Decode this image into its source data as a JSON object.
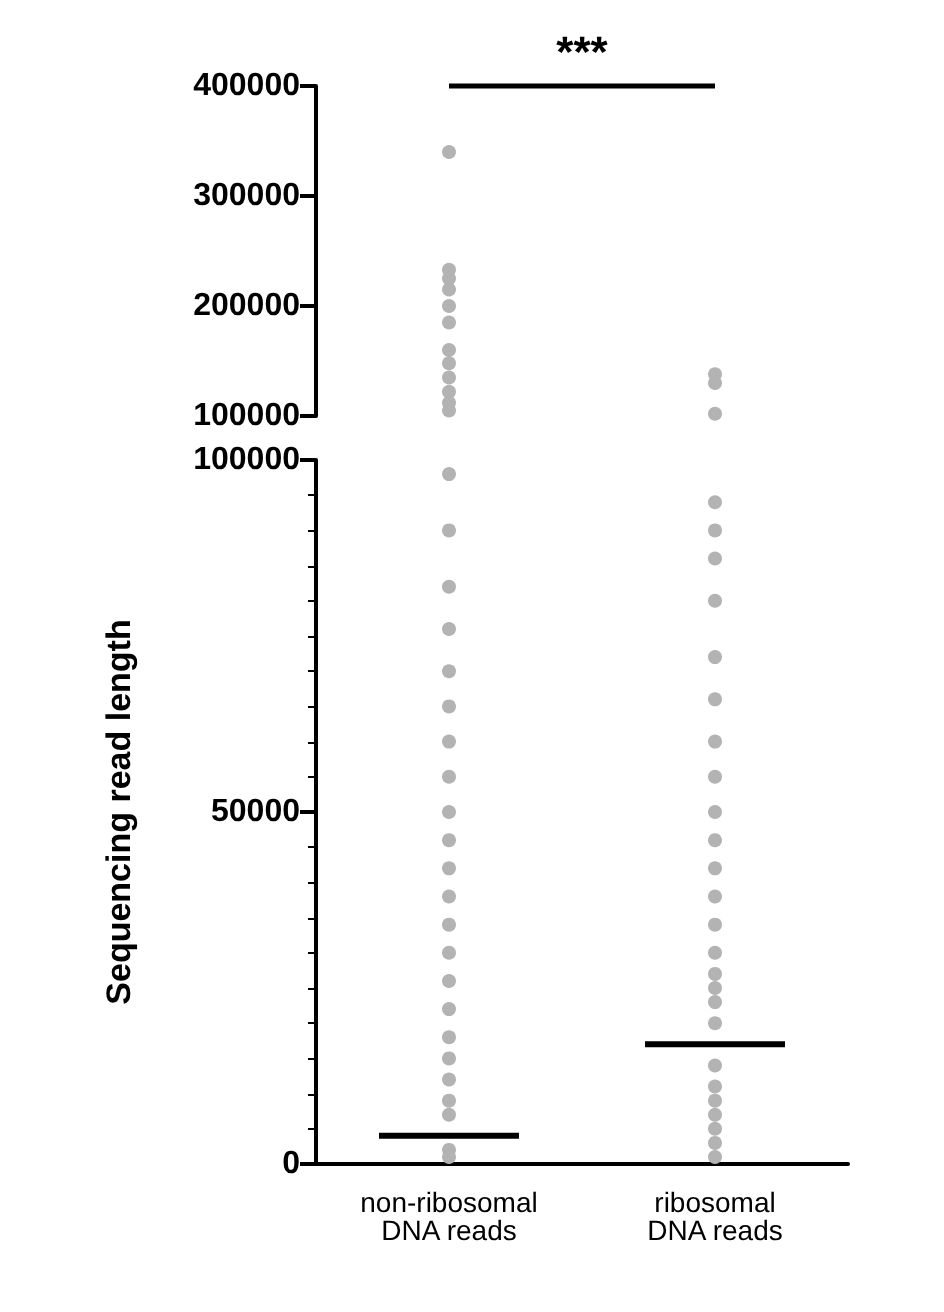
{
  "chart_data": [
    {
      "type": "scatter",
      "categories": [
        "non-ribosomal\nDNA reads",
        "ribosomal\nDNA reads"
      ],
      "ylim": [
        100000,
        400000
      ],
      "yticks": [
        100000,
        200000,
        300000,
        400000
      ],
      "tick_labels": "y",
      "annotations": [
        "***"
      ],
      "marker": "circle",
      "series": [
        {
          "color": "#b3b3b3",
          "x": [
            "non-ribosomal\nDNA reads",
            "non-ribosomal\nDNA reads",
            "non-ribosomal\nDNA reads",
            "non-ribosomal\nDNA reads",
            "non-ribosomal\nDNA reads",
            "non-ribosomal\nDNA reads",
            "non-ribosomal\nDNA reads",
            "non-ribosomal\nDNA reads",
            "non-ribosomal\nDNA reads",
            "non-ribosomal\nDNA reads",
            "non-ribosomal\nDNA reads",
            "non-ribosomal\nDNA reads",
            "ribosomal\nDNA reads",
            "ribosomal\nDNA reads",
            "ribosomal\nDNA reads"
          ],
          "values": [
            340000,
            233000,
            225000,
            215000,
            200000,
            185000,
            160000,
            148000,
            135000,
            122000,
            112000,
            105000,
            138000,
            130000,
            102000
          ]
        }
      ]
    },
    {
      "type": "scatter",
      "categories": [
        "non-ribosomal\nDNA reads",
        "ribosomal\nDNA reads"
      ],
      "ylim": [
        0,
        100000
      ],
      "yticks": [
        0,
        50000,
        100000
      ],
      "ylabel": "Sequencing read length",
      "marker": "circle",
      "series": [
        {
          "color": "#b3b3b3",
          "x": [
            "non-ribosomal\nDNA reads",
            "non-ribosomal\nDNA reads",
            "non-ribosomal\nDNA reads",
            "non-ribosomal\nDNA reads",
            "non-ribosomal\nDNA reads",
            "non-ribosomal\nDNA reads",
            "non-ribosomal\nDNA reads",
            "non-ribosomal\nDNA reads",
            "non-ribosomal\nDNA reads",
            "non-ribosomal\nDNA reads",
            "non-ribosomal\nDNA reads",
            "non-ribosomal\nDNA reads",
            "non-ribosomal\nDNA reads",
            "non-ribosomal\nDNA reads",
            "non-ribosomal\nDNA reads",
            "non-ribosomal\nDNA reads",
            "non-ribosomal\nDNA reads",
            "non-ribosomal\nDNA reads",
            "non-ribosomal\nDNA reads",
            "non-ribosomal\nDNA reads",
            "non-ribosomal\nDNA reads",
            "non-ribosomal\nDNA reads",
            "non-ribosomal\nDNA reads",
            "ribosomal\nDNA reads",
            "ribosomal\nDNA reads",
            "ribosomal\nDNA reads",
            "ribosomal\nDNA reads",
            "ribosomal\nDNA reads",
            "ribosomal\nDNA reads",
            "ribosomal\nDNA reads",
            "ribosomal\nDNA reads",
            "ribosomal\nDNA reads",
            "ribosomal\nDNA reads",
            "ribosomal\nDNA reads",
            "ribosomal\nDNA reads",
            "ribosomal\nDNA reads",
            "ribosomal\nDNA reads",
            "ribosomal\nDNA reads",
            "ribosomal\nDNA reads",
            "ribosomal\nDNA reads",
            "ribosomal\nDNA reads",
            "ribosomal\nDNA reads",
            "ribosomal\nDNA reads",
            "ribosomal\nDNA reads",
            "ribosomal\nDNA reads",
            "ribosomal\nDNA reads",
            "ribosomal\nDNA reads",
            "ribosomal\nDNA reads"
          ],
          "values": [
            1000,
            2000,
            7000,
            9000,
            12000,
            15000,
            18000,
            22000,
            26000,
            30000,
            34000,
            38000,
            42000,
            46000,
            50000,
            55000,
            60000,
            65000,
            70000,
            76000,
            82000,
            90000,
            98000,
            1000,
            3000,
            5000,
            7000,
            9000,
            11000,
            14000,
            20000,
            23000,
            25000,
            27000,
            30000,
            34000,
            38000,
            42000,
            46000,
            50000,
            55000,
            60000,
            66000,
            72000,
            80000,
            86000,
            90000,
            94000
          ]
        },
        {
          "type": "box",
          "color": "#000000",
          "boxes": [
            {
              "low": 4000,
              "q1": 4000,
              "median": 4000,
              "q3": 4000,
              "high": 4000
            },
            {
              "low": 17000,
              "q1": 17000,
              "median": 17000,
              "q3": 17000,
              "high": 17000
            }
          ]
        }
      ]
    }
  ]
}
